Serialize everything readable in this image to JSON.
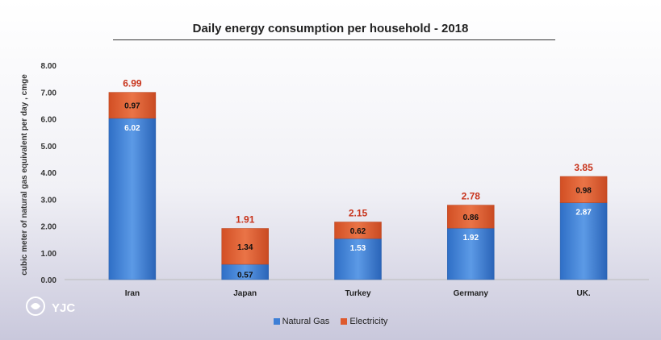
{
  "chart_data": {
    "type": "bar",
    "stacked": true,
    "title": "Daily energy consumption per household - 2018",
    "xlabel": "",
    "ylabel": "cubic meter of natural gas equivalent  per day , cmge",
    "ylim": [
      0,
      8
    ],
    "yticks": [
      "0.00",
      "1.00",
      "2.00",
      "3.00",
      "4.00",
      "5.00",
      "6.00",
      "7.00",
      "8.00"
    ],
    "categories": [
      "Iran",
      "Japan",
      "Turkey",
      "Germany",
      "UK."
    ],
    "series": [
      {
        "name": "Natural Gas",
        "values": [
          6.02,
          0.57,
          1.53,
          1.92,
          2.87
        ],
        "color": "#3d7fd6"
      },
      {
        "name": "Electricity",
        "values": [
          0.97,
          1.34,
          0.62,
          0.86,
          0.98
        ],
        "color": "#de5a2e"
      }
    ],
    "totals": [
      6.99,
      1.91,
      2.15,
      2.78,
      3.85
    ],
    "value_labels": {
      "Natural Gas": [
        "6.02",
        "0.57",
        "1.53",
        "1.92",
        "2.87"
      ],
      "Electricity": [
        "0.97",
        "1.34",
        "0.62",
        "0.86",
        "0.98"
      ],
      "totals": [
        "6.99",
        "1.91",
        "2.15",
        "2.78",
        "3.85"
      ]
    },
    "total_label_color": "#c8341c",
    "grid": false,
    "legend_position": "bottom"
  },
  "watermark": {
    "text": "YJC"
  }
}
